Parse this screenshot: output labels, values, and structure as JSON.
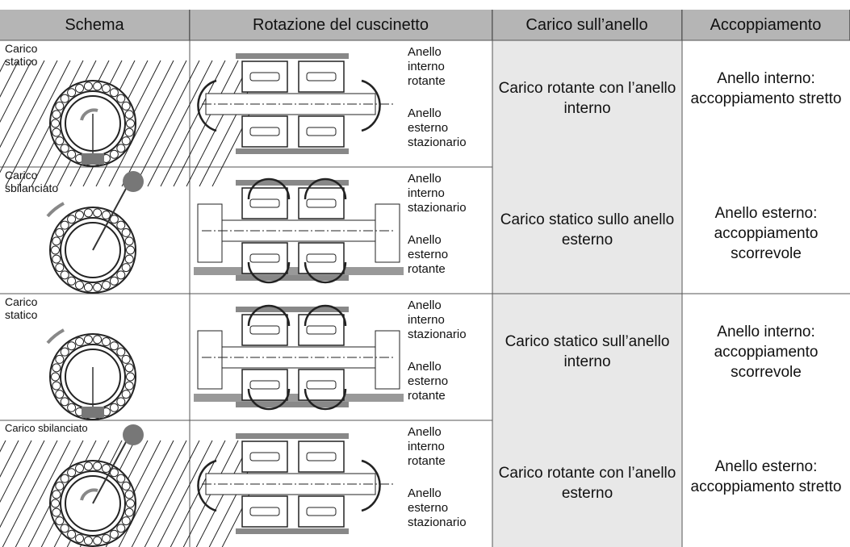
{
  "table": {
    "header": [
      "Schema",
      "Rotazione del cuscinetto",
      "Carico sull’anello",
      "Accoppiamento"
    ],
    "rows": [
      {
        "schema": "Carico statico",
        "rotation": [
          "Anello interno rotante",
          "Anello esterno stazionario"
        ]
      },
      {
        "schema": "Carico sbilanciato",
        "rotation": [
          "Anello interno stazionario",
          "Anello esterno rotante"
        ]
      },
      {
        "schema": "Carico statico",
        "rotation": [
          "Anello interno stazionario",
          "Anello esterno rotante"
        ]
      },
      {
        "schema": "Carico sbilanciato",
        "rotation": [
          "Anello interno rotante",
          "Anello esterno stazionario"
        ]
      }
    ],
    "groups": [
      {
        "load": [
          "Carico rotante con l’anello interno",
          "Carico statico sullo anello esterno"
        ],
        "fit": [
          "Anello interno: accoppiamento stretto",
          "Anello esterno: accoppiamento scorrevole"
        ]
      },
      {
        "load": [
          "Carico statico sull’anello interno",
          "Carico rotante con l’anello esterno"
        ],
        "fit": [
          "Anello interno: accoppiamento scorrevole",
          "Anello esterno: accoppiamento stretto"
        ]
      }
    ]
  }
}
